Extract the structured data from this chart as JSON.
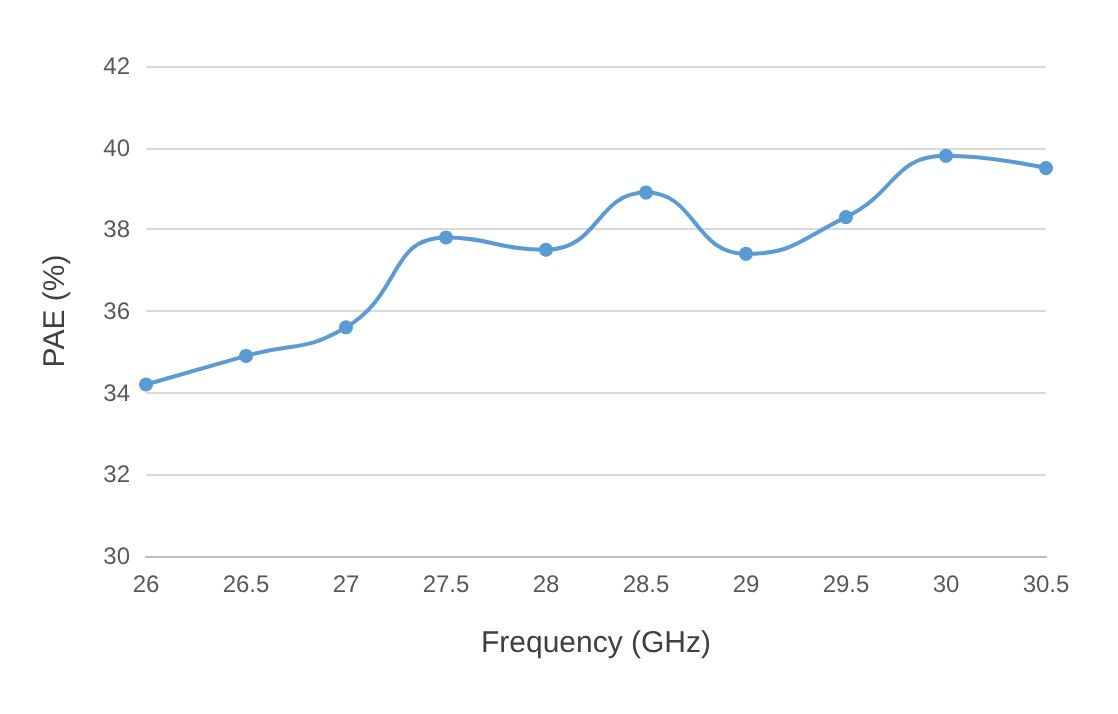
{
  "chart_data": {
    "type": "line",
    "xlabel": "Frequency (GHz)",
    "ylabel": "PAE (%)",
    "x": [
      26,
      26.5,
      27,
      27.5,
      28,
      28.5,
      29,
      29.5,
      30,
      30.5
    ],
    "series": [
      {
        "color": "#5b9bd5",
        "values": [
          34.2,
          34.9,
          35.6,
          37.8,
          37.5,
          38.9,
          37.4,
          38.3,
          39.8,
          39.5
        ]
      }
    ],
    "xlim": [
      26,
      30.5
    ],
    "xticks": [
      26,
      26.5,
      27,
      27.5,
      28,
      28.5,
      29,
      29.5,
      30,
      30.5
    ],
    "ylim": [
      30,
      42
    ],
    "yticks": [
      30,
      32,
      34,
      36,
      38,
      40,
      42
    ],
    "grid": "y",
    "marker": "circle",
    "line_style": "solid"
  }
}
